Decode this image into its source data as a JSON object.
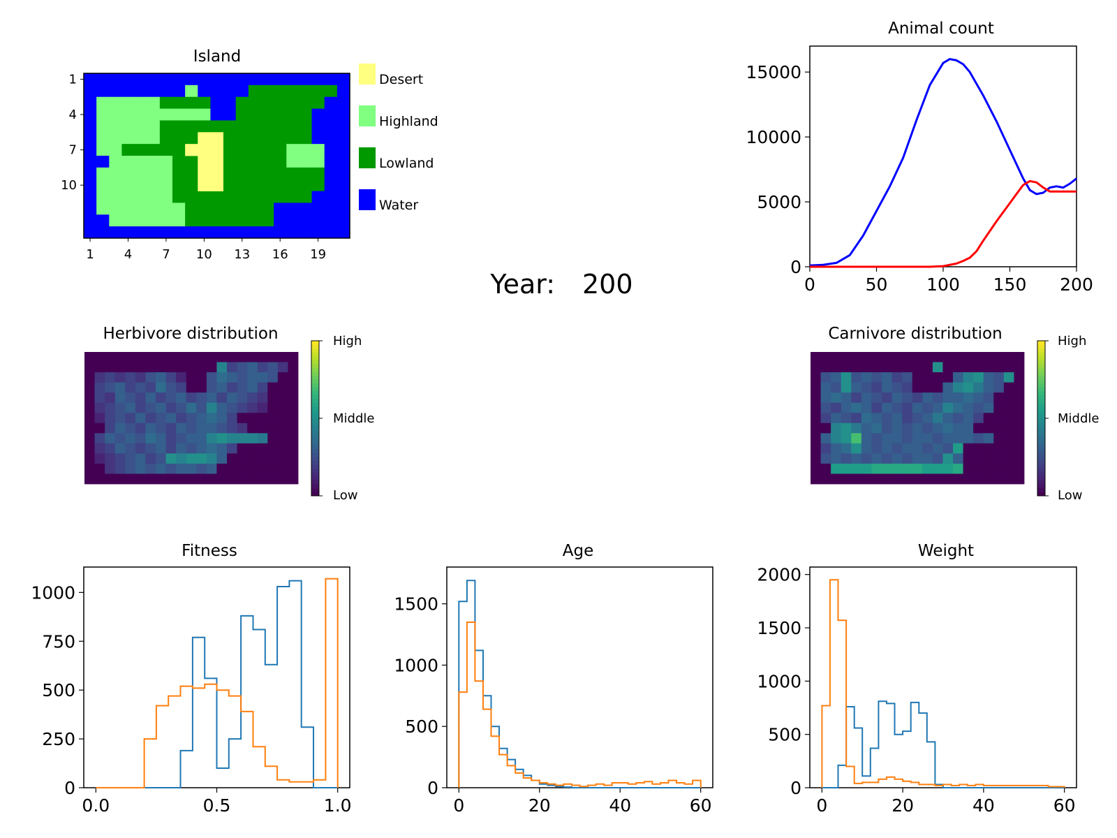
{
  "year_label": "Year:",
  "year_value": "200",
  "colors": {
    "desert": "#ffff80",
    "highland": "#80ff80",
    "lowland": "#009900",
    "water": "#0000ff",
    "herbivore_line": "#0000ff",
    "carnivore_line": "#ff0000",
    "herbivore_hist": "#1f77b4",
    "carnivore_hist": "#ff7f0e"
  },
  "island": {
    "title": "Island",
    "xticks": [
      "1",
      "4",
      "7",
      "10",
      "13",
      "16",
      "19"
    ],
    "yticks": [
      "1",
      "4",
      "7",
      "10"
    ],
    "legend": [
      "Desert",
      "Highland",
      "Lowland",
      "Water"
    ],
    "map_rows": [
      "WWWWWWWWWWWWWWWWWWWWW",
      "WWWWWWWWHWWWWLLLLLLLW",
      "WHHHHHLLLLWWLLLLLLLWW",
      "WHHHHHHHHHWWLLLLLLWWW",
      "WHHHHHLLLLLLLLLLLLWWW",
      "WHHHHHLLLLLLLLLLLLWWW",
      "WHHLLLLLLLLLLLLLHHHWW",
      "WWHHHHHLLLLLLLLLHHHWW",
      "WHHHHHHLLLLLLLLLLLLWW",
      "WHHHHHHLLLLLLLLLLLLWW",
      "WHHHHHHLLLLLLLLLLLWWW",
      "WHHHHHHHLLLLLLLWWWWWW",
      "WWHHHHHHLLLLLLLWWWWWW",
      "WWWWWWWWWWWWWWWWWWWWW"
    ]
  },
  "herbivore_distribution": {
    "title": "Herbivore distribution",
    "colorbar_labels": [
      "High",
      "Middle",
      "Low"
    ]
  },
  "carnivore_distribution": {
    "title": "Carnivore distribution",
    "colorbar_labels": [
      "High",
      "Middle",
      "Low"
    ]
  },
  "chart_data": [
    {
      "id": "animal_count",
      "type": "line",
      "title": "Animal count",
      "xlim": [
        0,
        200
      ],
      "ylim": [
        0,
        17000
      ],
      "xticks": [
        0,
        50,
        100,
        150,
        200
      ],
      "yticks": [
        0,
        5000,
        10000,
        15000
      ],
      "series": [
        {
          "color_key": "herbivore_line",
          "x": [
            0,
            10,
            20,
            30,
            40,
            50,
            60,
            70,
            80,
            90,
            100,
            105,
            110,
            115,
            120,
            130,
            140,
            150,
            160,
            165,
            170,
            175,
            180,
            185,
            190,
            195,
            200
          ],
          "y": [
            100,
            150,
            300,
            900,
            2400,
            4300,
            6200,
            8400,
            11300,
            14000,
            15700,
            16000,
            15900,
            15600,
            15000,
            13200,
            11200,
            9000,
            6800,
            5900,
            5600,
            5700,
            6100,
            6200,
            6100,
            6400,
            6800
          ]
        },
        {
          "color_key": "carnivore_line",
          "x": [
            0,
            50,
            90,
            100,
            110,
            115,
            120,
            125,
            130,
            140,
            150,
            155,
            160,
            165,
            170,
            175,
            180,
            190,
            200
          ],
          "y": [
            0,
            0,
            0,
            50,
            250,
            450,
            700,
            1200,
            2000,
            3500,
            4900,
            5600,
            6300,
            6600,
            6500,
            6100,
            5800,
            5800,
            5800
          ]
        }
      ]
    },
    {
      "id": "fitness",
      "type": "bar",
      "title": "Fitness",
      "xlim": [
        -0.05,
        1.05
      ],
      "ylim": [
        0,
        1130
      ],
      "xticks": [
        0.0,
        0.5,
        1.0
      ],
      "xtick_labels": [
        "0.0",
        "0.5",
        "1.0"
      ],
      "yticks": [
        0,
        250,
        500,
        750,
        1000
      ],
      "bin_edges": [
        0.0,
        0.05,
        0.1,
        0.15,
        0.2,
        0.25,
        0.3,
        0.35,
        0.4,
        0.45,
        0.5,
        0.55,
        0.6,
        0.65,
        0.7,
        0.75,
        0.8,
        0.85,
        0.9,
        0.95,
        1.0
      ],
      "series": [
        {
          "color_key": "herbivore_hist",
          "values": [
            0,
            0,
            0,
            0,
            0,
            0,
            0,
            190,
            770,
            560,
            100,
            250,
            880,
            810,
            630,
            1030,
            1060,
            310,
            0,
            0
          ]
        },
        {
          "color_key": "carnivore_hist",
          "values": [
            0,
            0,
            0,
            0,
            250,
            420,
            470,
            520,
            510,
            530,
            500,
            470,
            390,
            210,
            110,
            40,
            30,
            30,
            40,
            1070
          ]
        }
      ]
    },
    {
      "id": "age",
      "type": "bar",
      "title": "Age",
      "xlim": [
        -3,
        63
      ],
      "ylim": [
        0,
        1800
      ],
      "xticks": [
        0,
        20,
        40,
        60
      ],
      "xtick_labels": [
        "0",
        "20",
        "40",
        "60"
      ],
      "yticks": [
        0,
        500,
        1000,
        1500
      ],
      "bin_edges": [
        0,
        2,
        4,
        6,
        8,
        10,
        12,
        14,
        16,
        18,
        20,
        22,
        24,
        26,
        28,
        30,
        32,
        34,
        36,
        38,
        40,
        42,
        44,
        46,
        48,
        50,
        52,
        54,
        56,
        58,
        60
      ],
      "series": [
        {
          "color_key": "herbivore_hist",
          "values": [
            1520,
            1690,
            1120,
            750,
            500,
            320,
            230,
            150,
            100,
            60,
            30,
            20,
            10,
            5,
            0,
            0,
            0,
            0,
            0,
            0,
            0,
            0,
            0,
            0,
            0,
            0,
            0,
            0,
            0,
            0
          ]
        },
        {
          "color_key": "carnivore_hist",
          "values": [
            780,
            1350,
            870,
            640,
            420,
            270,
            180,
            120,
            80,
            60,
            40,
            30,
            20,
            30,
            20,
            10,
            20,
            30,
            20,
            40,
            40,
            30,
            40,
            50,
            30,
            40,
            60,
            40,
            30,
            60
          ]
        }
      ]
    },
    {
      "id": "weight",
      "type": "bar",
      "title": "Weight",
      "xlim": [
        -3,
        63
      ],
      "ylim": [
        0,
        2070
      ],
      "xticks": [
        0,
        20,
        40,
        60
      ],
      "xtick_labels": [
        "0",
        "20",
        "40",
        "60"
      ],
      "yticks": [
        0,
        500,
        1000,
        1500,
        2000
      ],
      "bin_edges": [
        0,
        2,
        4,
        6,
        8,
        10,
        12,
        14,
        16,
        18,
        20,
        22,
        24,
        26,
        28,
        30,
        32,
        34,
        36,
        38,
        40,
        42,
        44,
        46,
        48,
        50,
        52,
        54,
        56,
        58,
        60
      ],
      "series": [
        {
          "color_key": "herbivore_hist",
          "values": [
            0,
            0,
            210,
            760,
            560,
            110,
            370,
            810,
            790,
            500,
            530,
            800,
            700,
            430,
            30,
            0,
            0,
            0,
            0,
            0,
            0,
            0,
            0,
            0,
            0,
            0,
            0,
            0,
            0,
            0
          ]
        },
        {
          "color_key": "carnivore_hist",
          "values": [
            770,
            1950,
            1570,
            200,
            40,
            50,
            50,
            80,
            100,
            80,
            60,
            50,
            30,
            30,
            20,
            30,
            20,
            30,
            20,
            30,
            20,
            20,
            20,
            20,
            20,
            20,
            20,
            20,
            10,
            10
          ]
        }
      ]
    },
    {
      "id": "herbivore_heatmap",
      "type": "heatmap",
      "scale": [
        0,
        1
      ],
      "values": [
        [
          0,
          0,
          0,
          0,
          0,
          0,
          0,
          0,
          0,
          0,
          0,
          0,
          0,
          0,
          0,
          0,
          0,
          0,
          0,
          0,
          0
        ],
        [
          0,
          0,
          0,
          0,
          0,
          0,
          0,
          0,
          0,
          0,
          0,
          0,
          0,
          0.45,
          0.2,
          0.25,
          0.3,
          0.2,
          0.25,
          0.15,
          0
        ],
        [
          0,
          0.15,
          0.2,
          0.15,
          0.2,
          0.15,
          0.25,
          0.3,
          0.2,
          0.1,
          0,
          0,
          0.25,
          0.35,
          0.3,
          0.25,
          0.3,
          0.3,
          0.25,
          0,
          0
        ],
        [
          0,
          0.2,
          0.25,
          0.3,
          0.2,
          0.25,
          0.2,
          0.35,
          0.25,
          0.2,
          0,
          0,
          0.25,
          0.3,
          0.2,
          0.25,
          0.3,
          0.2,
          0,
          0,
          0
        ],
        [
          0,
          0.2,
          0.15,
          0.3,
          0.25,
          0.2,
          0.3,
          0.2,
          0.25,
          0.3,
          0.2,
          0.25,
          0.3,
          0.2,
          0.3,
          0.25,
          0.2,
          0.15,
          0,
          0,
          0
        ],
        [
          0,
          0.15,
          0.2,
          0.25,
          0.3,
          0.2,
          0.25,
          0.3,
          0.2,
          0.25,
          0.35,
          0.25,
          0.45,
          0.3,
          0.25,
          0.2,
          0.15,
          0.1,
          0,
          0,
          0
        ],
        [
          0,
          0.1,
          0.2,
          0.25,
          0.2,
          0.3,
          0.2,
          0.25,
          0.3,
          0.2,
          0.25,
          0.3,
          0.35,
          0.3,
          0.2,
          0,
          0,
          0,
          0,
          0,
          0
        ],
        [
          0,
          0,
          0.2,
          0.3,
          0.25,
          0.2,
          0.3,
          0.25,
          0.2,
          0.3,
          0.25,
          0.3,
          0.3,
          0.25,
          0.2,
          0.15,
          0,
          0,
          0,
          0,
          0
        ],
        [
          0,
          0.2,
          0.3,
          0.25,
          0.3,
          0.25,
          0.35,
          0.3,
          0.2,
          0.25,
          0.3,
          0.3,
          0.45,
          0.5,
          0.45,
          0.45,
          0.45,
          0.4,
          0,
          0,
          0
        ],
        [
          0,
          0.15,
          0.2,
          0.3,
          0.25,
          0.2,
          0.25,
          0.3,
          0.2,
          0.3,
          0.25,
          0.3,
          0.35,
          0.3,
          0.2,
          0,
          0,
          0,
          0,
          0,
          0
        ],
        [
          0,
          0.1,
          0.15,
          0.2,
          0.25,
          0.3,
          0.2,
          0.25,
          0.5,
          0.45,
          0.5,
          0.5,
          0.45,
          0.3,
          0,
          0,
          0,
          0,
          0,
          0,
          0
        ],
        [
          0,
          0,
          0.15,
          0.2,
          0.25,
          0.3,
          0.25,
          0.3,
          0.25,
          0.3,
          0.3,
          0.25,
          0.3,
          0,
          0,
          0,
          0,
          0,
          0,
          0,
          0
        ],
        [
          0,
          0,
          0,
          0,
          0,
          0,
          0,
          0,
          0,
          0,
          0,
          0,
          0,
          0,
          0,
          0,
          0,
          0,
          0,
          0,
          0
        ]
      ]
    },
    {
      "id": "carnivore_heatmap",
      "type": "heatmap",
      "scale": [
        0,
        1
      ],
      "values": [
        [
          0,
          0,
          0,
          0,
          0,
          0,
          0,
          0,
          0,
          0,
          0,
          0,
          0,
          0,
          0,
          0,
          0,
          0,
          0,
          0,
          0
        ],
        [
          0,
          0,
          0,
          0,
          0,
          0,
          0,
          0,
          0,
          0,
          0,
          0,
          0.5,
          0,
          0,
          0,
          0,
          0,
          0,
          0,
          0
        ],
        [
          0,
          0.25,
          0.3,
          0.5,
          0.25,
          0.3,
          0.25,
          0.3,
          0.2,
          0.25,
          0,
          0,
          0,
          0,
          0.3,
          0.45,
          0.5,
          0.3,
          0.25,
          0.5,
          0
        ],
        [
          0,
          0.3,
          0.25,
          0.5,
          0.3,
          0.25,
          0.2,
          0.3,
          0.25,
          0.2,
          0,
          0,
          0,
          0.3,
          0.45,
          0.5,
          0.4,
          0.3,
          0.25,
          0,
          0
        ],
        [
          0,
          0.3,
          0.35,
          0.3,
          0.2,
          0.3,
          0.25,
          0.2,
          0.3,
          0.25,
          0.2,
          0.3,
          0.25,
          0.3,
          0.3,
          0.35,
          0.3,
          0.25,
          0,
          0,
          0
        ],
        [
          0,
          0.25,
          0.2,
          0.3,
          0.35,
          0.3,
          0.2,
          0.3,
          0.25,
          0.2,
          0.3,
          0.25,
          0.3,
          0.45,
          0.35,
          0.3,
          0.25,
          0.3,
          0,
          0,
          0
        ],
        [
          0,
          0.2,
          0.3,
          0.25,
          0.2,
          0.35,
          0.3,
          0.25,
          0.3,
          0.2,
          0.25,
          0.3,
          0.4,
          0.3,
          0.25,
          0.3,
          0.2,
          0,
          0,
          0,
          0
        ],
        [
          0,
          0,
          0.45,
          0.5,
          0.4,
          0.3,
          0.35,
          0.25,
          0.3,
          0.25,
          0.3,
          0.25,
          0.3,
          0.35,
          0.3,
          0.3,
          0,
          0,
          0,
          0,
          0
        ],
        [
          0,
          0.3,
          0.45,
          0.5,
          0.7,
          0.3,
          0.25,
          0.3,
          0.3,
          0.25,
          0.3,
          0.3,
          0.25,
          0.3,
          0.3,
          0.3,
          0.25,
          0.3,
          0,
          0,
          0
        ],
        [
          0,
          0.2,
          0.3,
          0.35,
          0.5,
          0.3,
          0.25,
          0.3,
          0.25,
          0.3,
          0.3,
          0.25,
          0.3,
          0.25,
          0.55,
          0,
          0,
          0,
          0,
          0,
          0
        ],
        [
          0,
          0.25,
          0.3,
          0.25,
          0.3,
          0.25,
          0.3,
          0.25,
          0.3,
          0.25,
          0.3,
          0.3,
          0.25,
          0.5,
          0.3,
          0,
          0,
          0,
          0,
          0,
          0
        ],
        [
          0,
          0,
          0.55,
          0.55,
          0.55,
          0.55,
          0.6,
          0.6,
          0.6,
          0.6,
          0.6,
          0.55,
          0.55,
          0.55,
          0.6,
          0,
          0,
          0,
          0,
          0,
          0
        ],
        [
          0,
          0,
          0,
          0,
          0,
          0,
          0,
          0,
          0,
          0,
          0,
          0,
          0,
          0,
          0,
          0,
          0,
          0,
          0,
          0,
          0
        ]
      ]
    }
  ]
}
